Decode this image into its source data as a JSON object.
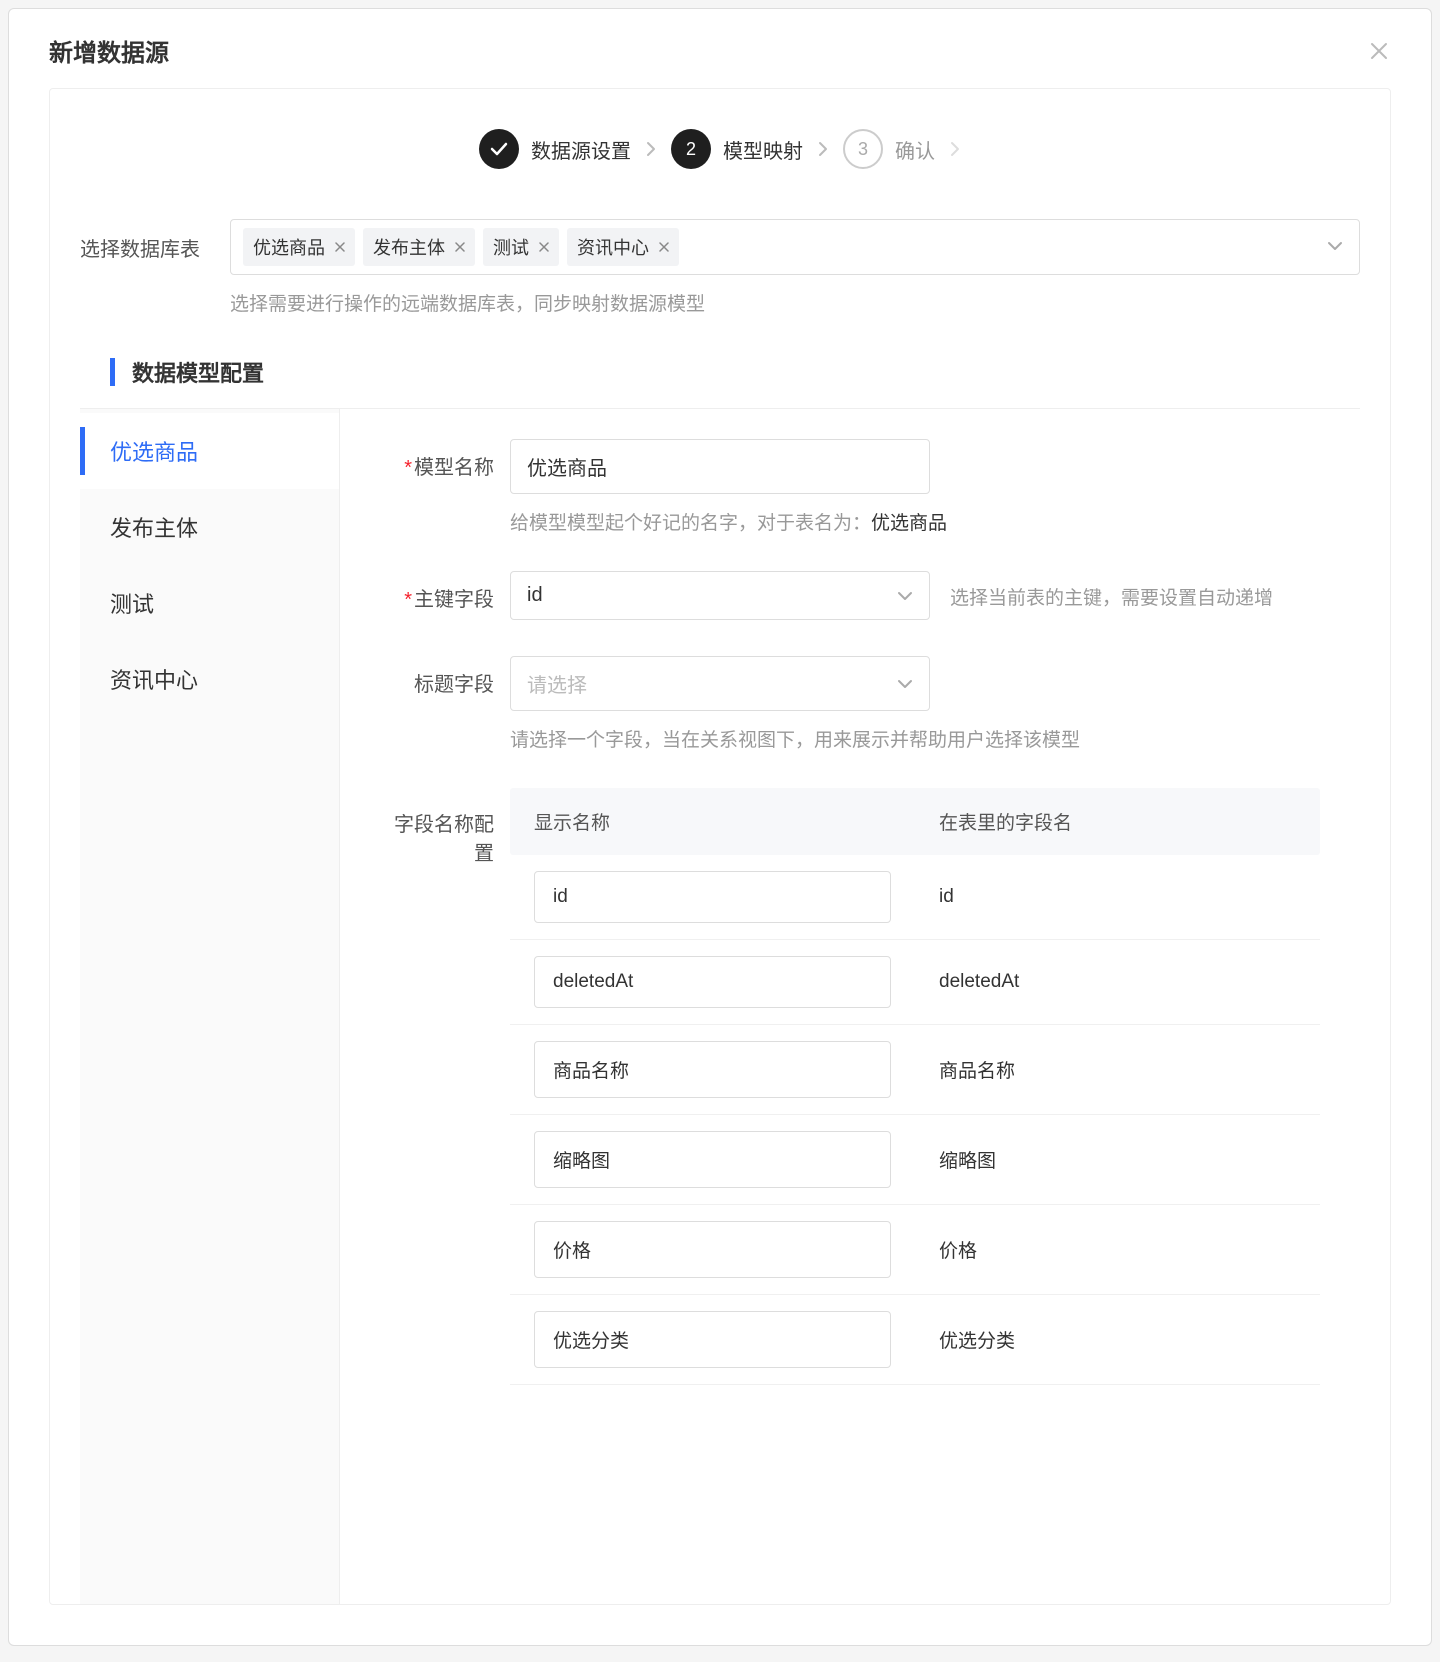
{
  "modal": {
    "title": "新增数据源"
  },
  "steps": {
    "items": [
      {
        "label": "数据源设置",
        "state": "done"
      },
      {
        "label": "模型映射",
        "state": "active",
        "num": "2"
      },
      {
        "label": "确认",
        "state": "pending",
        "num": "3"
      }
    ]
  },
  "tableSelect": {
    "label": "选择数据库表",
    "tags": [
      "优选商品",
      "发布主体",
      "测试",
      "资讯中心"
    ],
    "helper": "选择需要进行操作的远端数据库表，同步映射数据源模型"
  },
  "section": {
    "title": "数据模型配置"
  },
  "sidebar": {
    "items": [
      {
        "label": "优选商品",
        "active": true
      },
      {
        "label": "发布主体",
        "active": false
      },
      {
        "label": "测试",
        "active": false
      },
      {
        "label": "资讯中心",
        "active": false
      }
    ]
  },
  "form": {
    "modelName": {
      "label": "模型名称",
      "value": "优选商品",
      "hintPrefix": "给模型模型起个好记的名字，对于表名为：",
      "hintStrong": "优选商品"
    },
    "primaryKey": {
      "label": "主键字段",
      "value": "id",
      "hint": "选择当前表的主键，需要设置自动递增"
    },
    "titleField": {
      "label": "标题字段",
      "placeholder": "请选择",
      "hint": "请选择一个字段，当在关系视图下，用来展示并帮助用户选择该模型"
    },
    "fieldConfig": {
      "label": "字段名称配置",
      "headers": {
        "display": "显示名称",
        "column": "在表里的字段名"
      },
      "rows": [
        {
          "display": "id",
          "column": "id"
        },
        {
          "display": "deletedAt",
          "column": "deletedAt"
        },
        {
          "display": "商品名称",
          "column": "商品名称"
        },
        {
          "display": "缩略图",
          "column": "缩略图"
        },
        {
          "display": "价格",
          "column": "价格"
        },
        {
          "display": "优选分类",
          "column": "优选分类"
        }
      ]
    }
  },
  "colors": {
    "primary": "#2e6cf6",
    "stepDark": "#1f1f1f",
    "textMuted": "#999999",
    "border": "#dddddd",
    "required": "#f5222d"
  }
}
